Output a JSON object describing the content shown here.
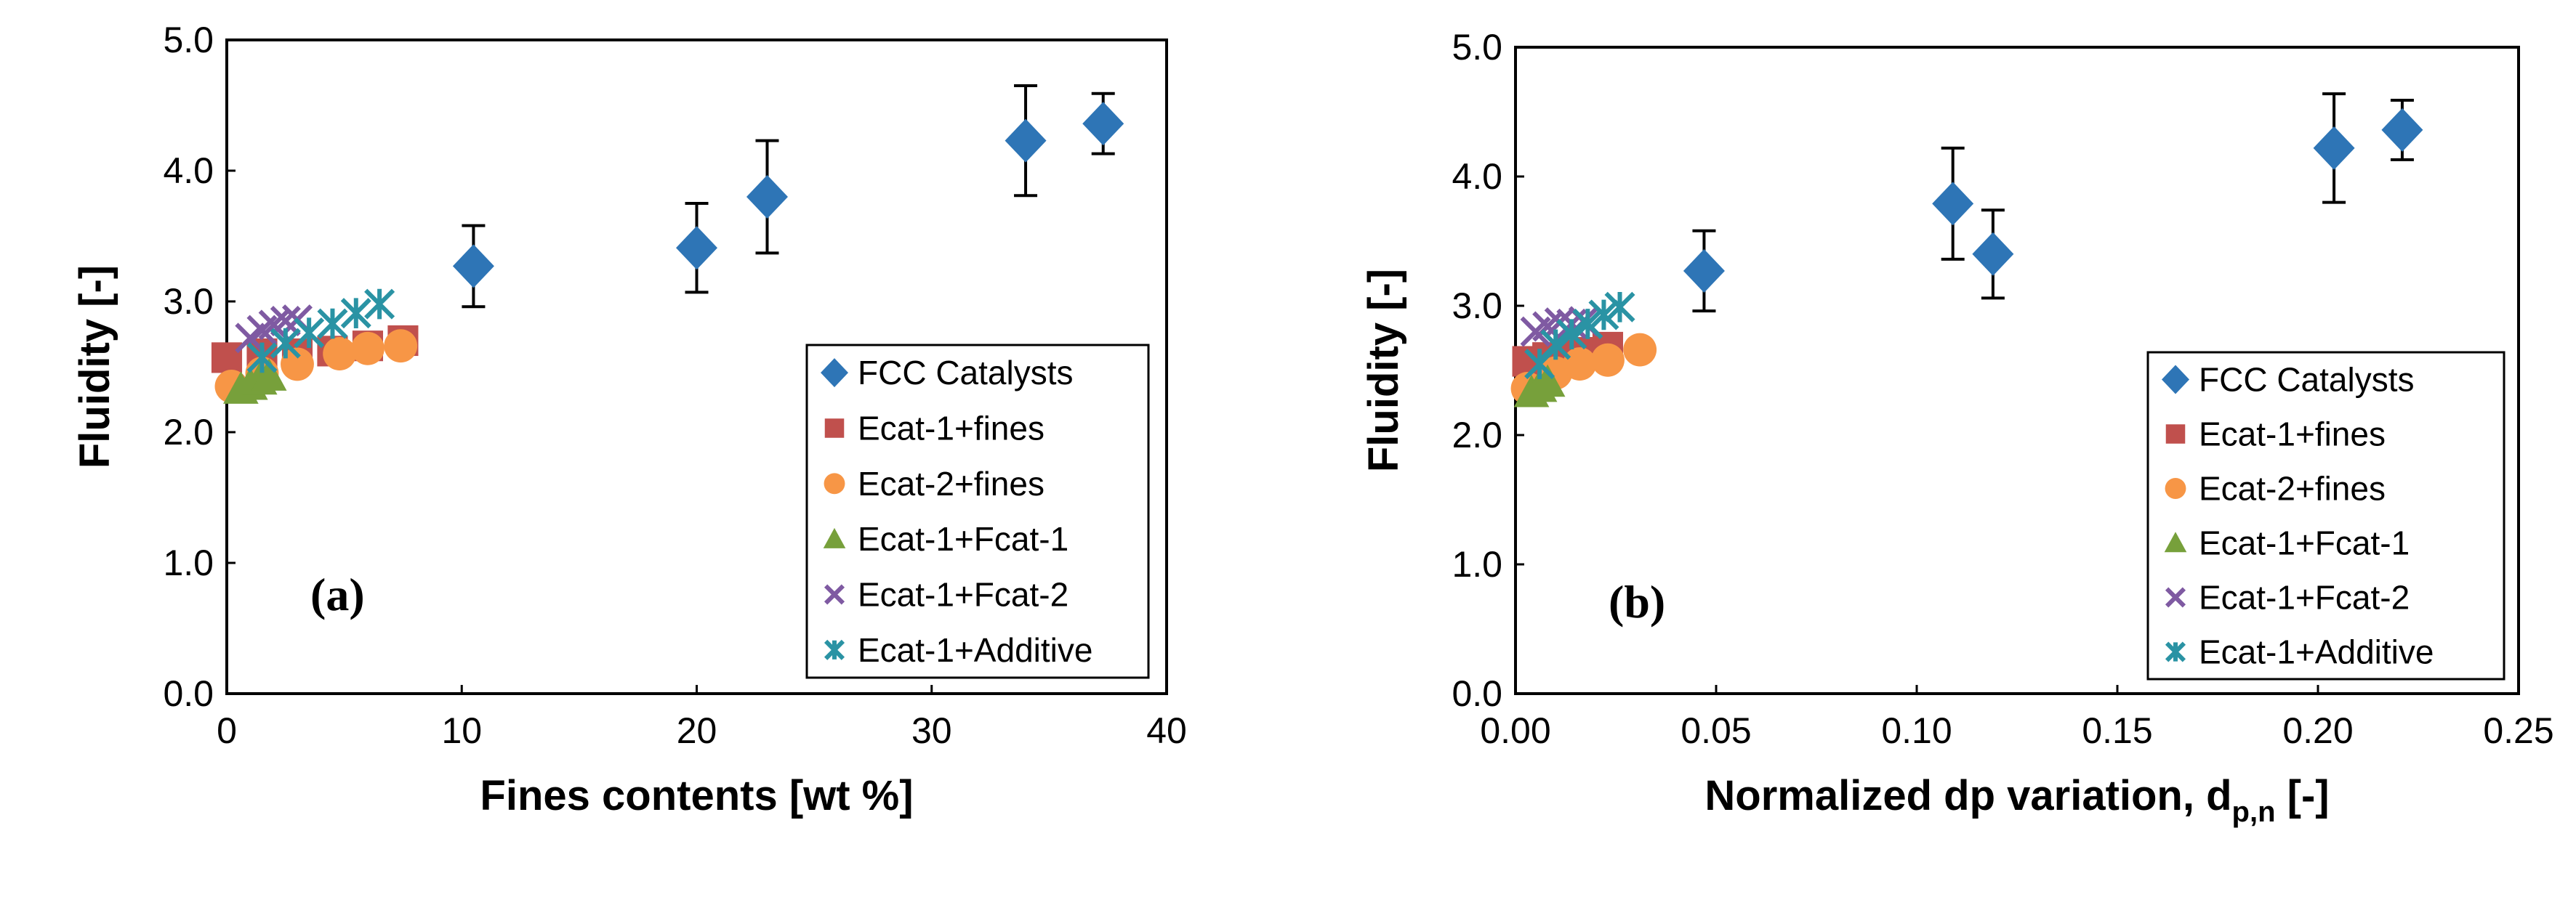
{
  "chart_data": [
    {
      "type": "scatter",
      "panel_label": "(a)",
      "xlabel": "Fines contents [wt %]",
      "ylabel": "Fluidity [-]",
      "xlim": [
        0,
        40
      ],
      "ylim": [
        0,
        5
      ],
      "xticks": [
        "0",
        "10",
        "20",
        "30",
        "40"
      ],
      "yticks": [
        "0.0",
        "1.0",
        "2.0",
        "3.0",
        "4.0",
        "5.0"
      ],
      "legend_position": "bottom-right",
      "series": [
        {
          "name": "FCC Catalysts",
          "marker": "diamond",
          "color": "#2E75B6",
          "points": [
            {
              "x": 10.5,
              "y": 3.27,
              "err": 0.31
            },
            {
              "x": 20.0,
              "y": 3.41,
              "err": 0.34
            },
            {
              "x": 23.0,
              "y": 3.8,
              "err": 0.43
            },
            {
              "x": 34.0,
              "y": 4.23,
              "err": 0.42
            },
            {
              "x": 37.3,
              "y": 4.36,
              "err": 0.23
            }
          ]
        },
        {
          "name": "Ecat-1+fines",
          "marker": "square",
          "color": "#C0504D",
          "points": [
            {
              "x": 0.0,
              "y": 2.57
            },
            {
              "x": 1.5,
              "y": 2.6
            },
            {
              "x": 3.0,
              "y": 2.6
            },
            {
              "x": 4.5,
              "y": 2.62
            },
            {
              "x": 6.0,
              "y": 2.66
            },
            {
              "x": 7.5,
              "y": 2.7
            }
          ]
        },
        {
          "name": "Ecat-2+fines",
          "marker": "circle",
          "color": "#F79646",
          "points": [
            {
              "x": 0.2,
              "y": 2.35
            },
            {
              "x": 1.5,
              "y": 2.45
            },
            {
              "x": 3.0,
              "y": 2.52
            },
            {
              "x": 4.8,
              "y": 2.6
            },
            {
              "x": 6.0,
              "y": 2.64
            },
            {
              "x": 7.4,
              "y": 2.66
            }
          ]
        },
        {
          "name": "Ecat-1+Fcat-1",
          "marker": "triangle",
          "color": "#77A03B",
          "points": [
            {
              "x": 0.6,
              "y": 2.33
            },
            {
              "x": 1.0,
              "y": 2.36
            },
            {
              "x": 1.4,
              "y": 2.4
            },
            {
              "x": 1.8,
              "y": 2.43
            }
          ]
        },
        {
          "name": "Ecat-1+Fcat-2",
          "marker": "x",
          "color": "#7F5AA2",
          "points": [
            {
              "x": 1.0,
              "y": 2.72
            },
            {
              "x": 1.5,
              "y": 2.78
            },
            {
              "x": 2.0,
              "y": 2.82
            },
            {
              "x": 2.5,
              "y": 2.85
            },
            {
              "x": 3.0,
              "y": 2.86
            }
          ]
        },
        {
          "name": "Ecat-1+Additive",
          "marker": "asterisk",
          "color": "#2A93A4",
          "points": [
            {
              "x": 1.5,
              "y": 2.57
            },
            {
              "x": 2.5,
              "y": 2.68
            },
            {
              "x": 3.5,
              "y": 2.76
            },
            {
              "x": 4.5,
              "y": 2.83
            },
            {
              "x": 5.5,
              "y": 2.91
            },
            {
              "x": 6.5,
              "y": 2.98
            }
          ]
        }
      ]
    },
    {
      "type": "scatter",
      "panel_label": "(b)",
      "xlabel": "Normalized dp variation, d",
      "xlabel_subscript": "p,n",
      "xlabel_suffix": " [-]",
      "ylabel": "Fluidity [-]",
      "xlim": [
        0,
        0.25
      ],
      "ylim": [
        0,
        5
      ],
      "xticks": [
        "0.00",
        "0.05",
        "0.10",
        "0.15",
        "0.20",
        "0.25"
      ],
      "yticks": [
        "0.0",
        "1.0",
        "2.0",
        "3.0",
        "4.0",
        "5.0"
      ],
      "legend_position": "bottom-right",
      "series": [
        {
          "name": "FCC Catalysts",
          "marker": "diamond",
          "color": "#2E75B6",
          "points": [
            {
              "x": 0.047,
              "y": 3.27,
              "err": 0.31
            },
            {
              "x": 0.109,
              "y": 3.79,
              "err": 0.43
            },
            {
              "x": 0.119,
              "y": 3.4,
              "err": 0.34
            },
            {
              "x": 0.204,
              "y": 4.22,
              "err": 0.42
            },
            {
              "x": 0.221,
              "y": 4.36,
              "err": 0.23
            }
          ]
        },
        {
          "name": "Ecat-1+fines",
          "marker": "square",
          "color": "#C0504D",
          "points": [
            {
              "x": 0.003,
              "y": 2.57
            },
            {
              "x": 0.008,
              "y": 2.6
            },
            {
              "x": 0.013,
              "y": 2.62
            },
            {
              "x": 0.018,
              "y": 2.64
            },
            {
              "x": 0.023,
              "y": 2.68
            }
          ]
        },
        {
          "name": "Ecat-2+fines",
          "marker": "circle",
          "color": "#F79646",
          "points": [
            {
              "x": 0.003,
              "y": 2.36
            },
            {
              "x": 0.01,
              "y": 2.48
            },
            {
              "x": 0.016,
              "y": 2.55
            },
            {
              "x": 0.023,
              "y": 2.58
            },
            {
              "x": 0.031,
              "y": 2.66
            }
          ]
        },
        {
          "name": "Ecat-1+Fcat-1",
          "marker": "triangle",
          "color": "#77A03B",
          "points": [
            {
              "x": 0.004,
              "y": 2.33
            },
            {
              "x": 0.006,
              "y": 2.37
            },
            {
              "x": 0.008,
              "y": 2.41
            }
          ]
        },
        {
          "name": "Ecat-1+Fcat-2",
          "marker": "x",
          "color": "#7F5AA2",
          "points": [
            {
              "x": 0.005,
              "y": 2.8
            },
            {
              "x": 0.008,
              "y": 2.84
            },
            {
              "x": 0.011,
              "y": 2.87
            },
            {
              "x": 0.014,
              "y": 2.86
            },
            {
              "x": 0.017,
              "y": 2.88
            }
          ]
        },
        {
          "name": "Ecat-1+Additive",
          "marker": "asterisk",
          "color": "#2A93A4",
          "points": [
            {
              "x": 0.006,
              "y": 2.55
            },
            {
              "x": 0.01,
              "y": 2.7
            },
            {
              "x": 0.014,
              "y": 2.78
            },
            {
              "x": 0.018,
              "y": 2.86
            },
            {
              "x": 0.022,
              "y": 2.93
            },
            {
              "x": 0.026,
              "y": 2.99
            }
          ]
        }
      ]
    }
  ]
}
